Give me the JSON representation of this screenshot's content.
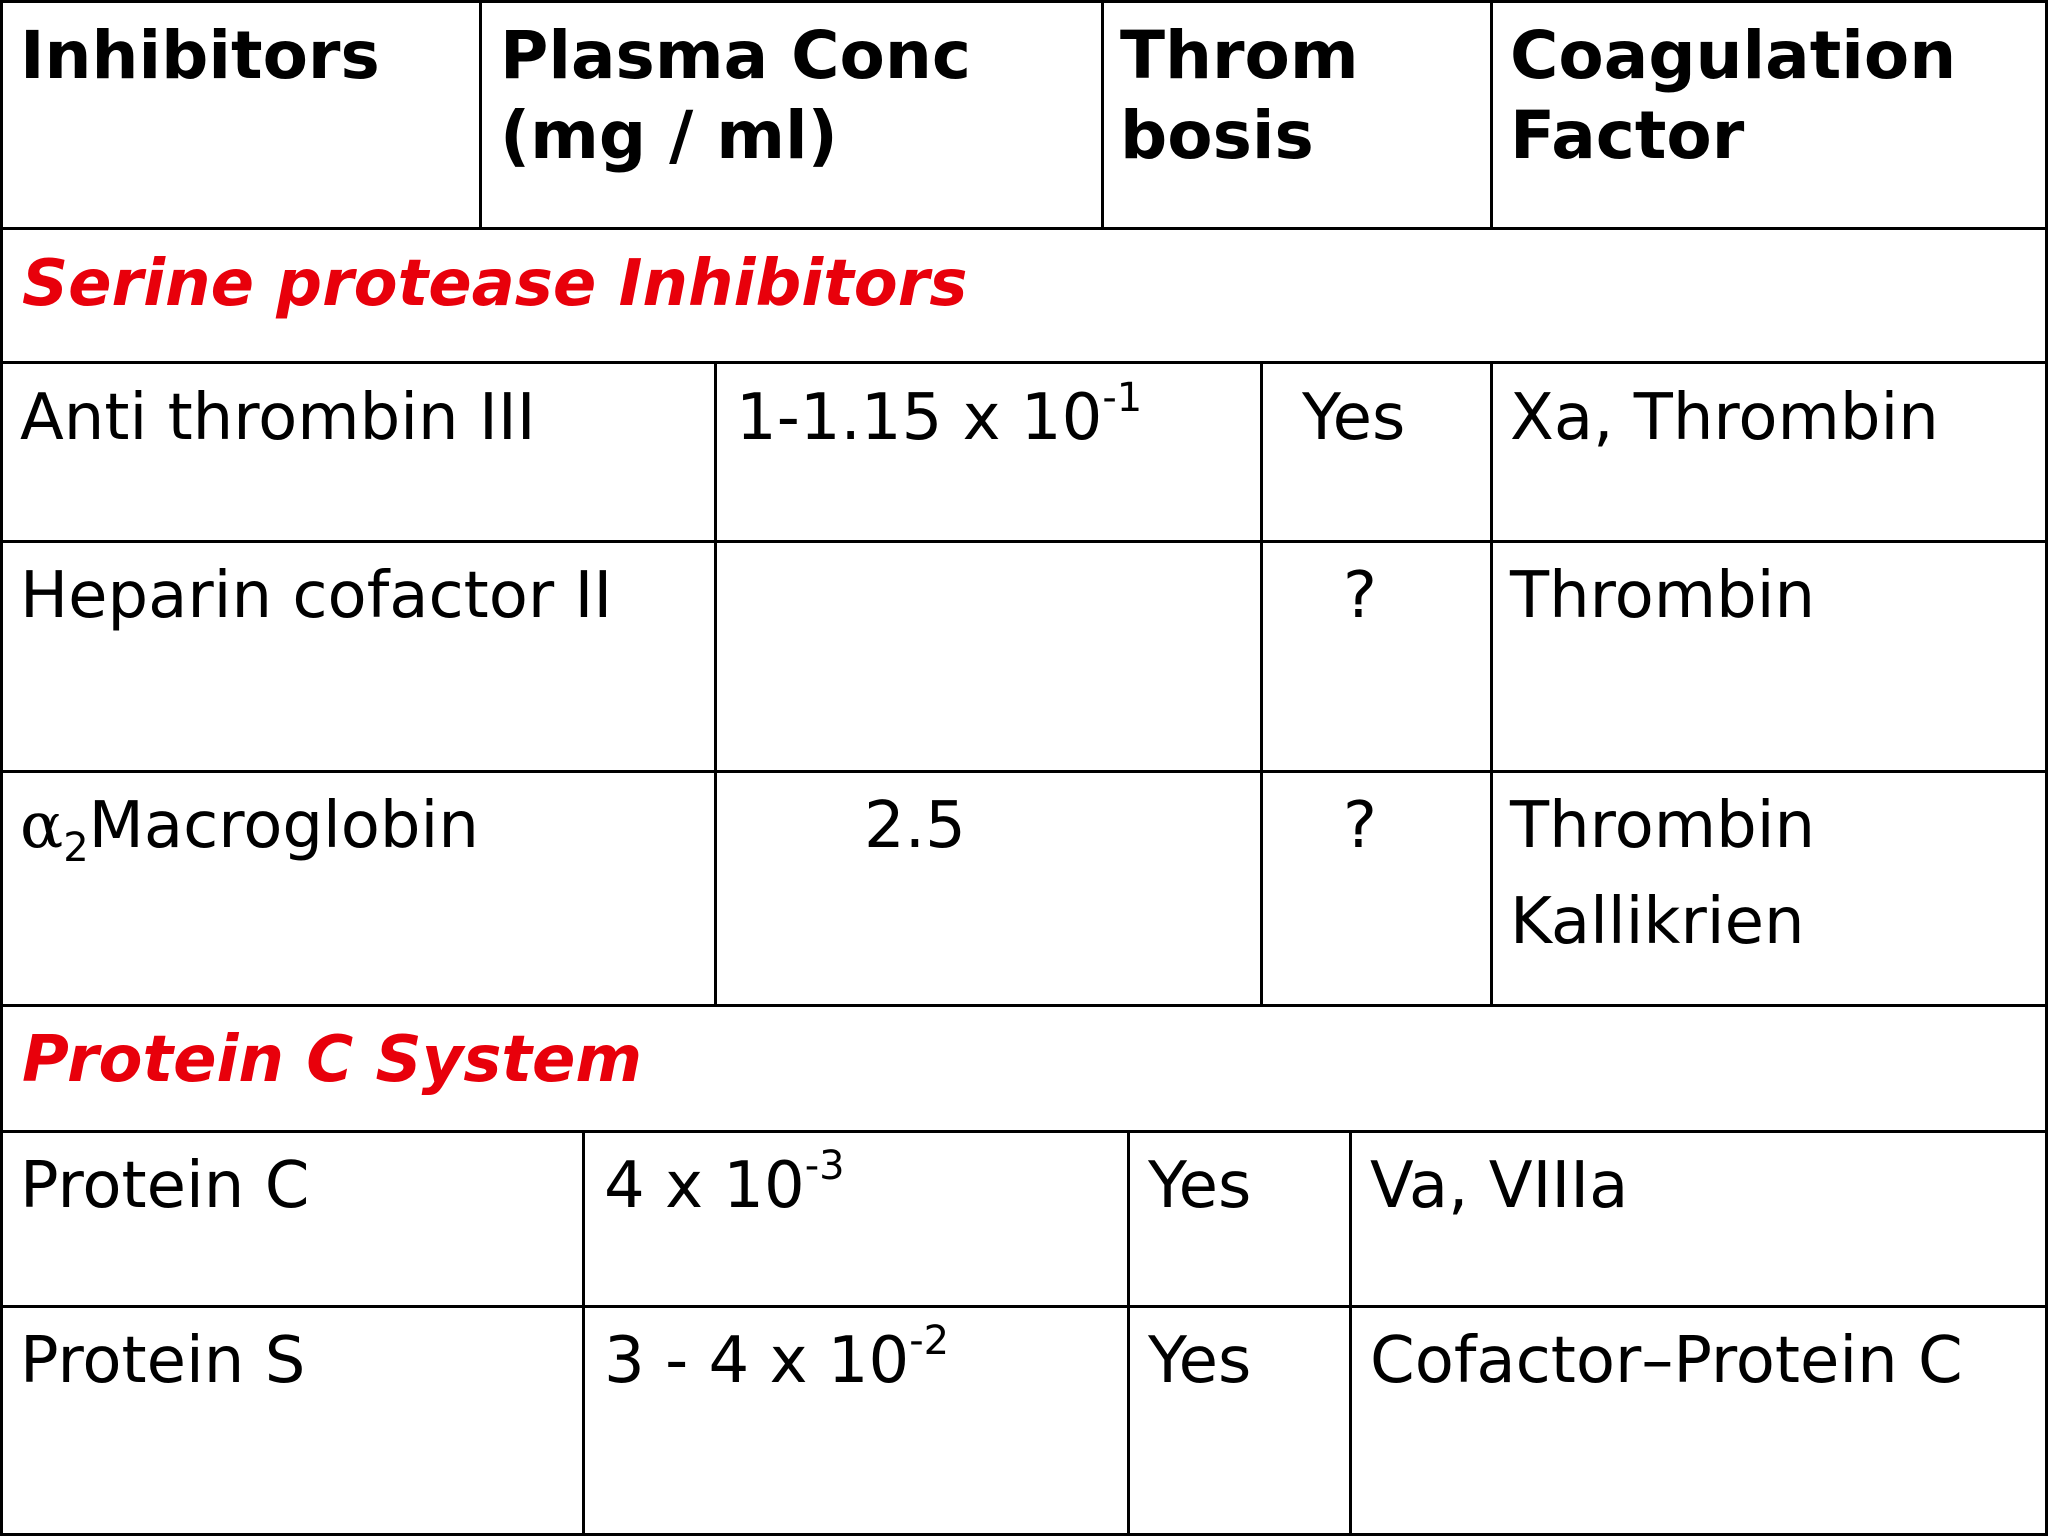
{
  "header": {
    "inhibitors": "Inhibitors",
    "plasma_conc_line1": "Plasma Conc",
    "plasma_conc_line2": "(mg / ml)",
    "thrombosis_line1": "Throm",
    "thrombosis_line2": "bosis",
    "coag_line1": "Coagulation",
    "coag_line2": "Factor"
  },
  "sections": {
    "serine": "Serine protease Inhibitors",
    "protein_c": "Protein C System"
  },
  "rows": {
    "at3": {
      "name": "Anti thrombin III",
      "conc_base": "1-1.15 x 10",
      "conc_exp": "-1",
      "thrombosis": "Yes",
      "factor": "Xa, Thrombin"
    },
    "hc2": {
      "name": "Heparin cofactor II",
      "conc": "",
      "thrombosis": "?",
      "factor": "Thrombin"
    },
    "a2m": {
      "name_symbol": "α",
      "name_sub": "2",
      "name_rest": "Macroglobin",
      "conc": "2.5",
      "thrombosis": "?",
      "factor_line1": "Thrombin",
      "factor_line2": "Kallikrien"
    },
    "pc": {
      "name": "Protein C",
      "conc_base": "4 x 10",
      "conc_exp": "-3",
      "thrombosis": "Yes",
      "factor": "Va, VIIIa"
    },
    "ps": {
      "name": "Protein S",
      "conc_base": "3 - 4 x 10",
      "conc_exp": "-2",
      "thrombosis": "Yes",
      "factor": "Cofactor–Protein C"
    }
  }
}
